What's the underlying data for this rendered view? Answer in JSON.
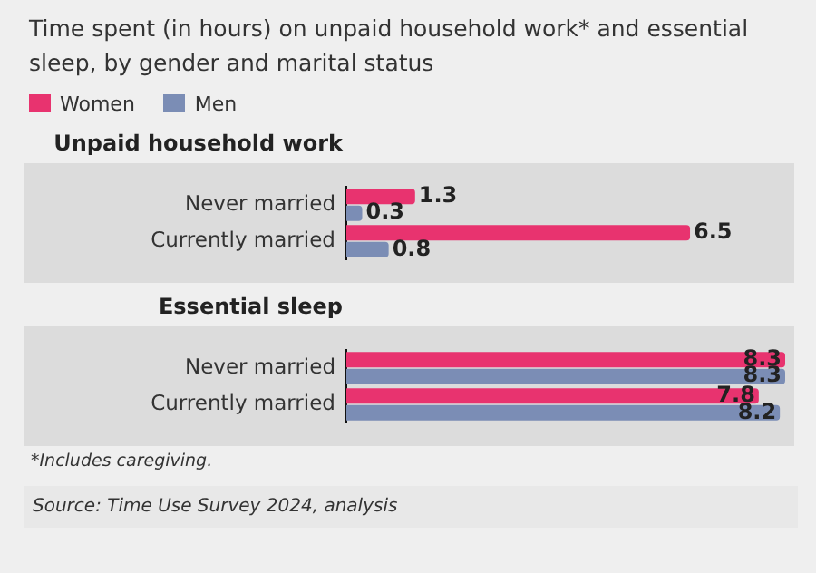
{
  "chart_data": [
    {
      "type": "bar",
      "orientation": "horizontal",
      "title": "Time spent (in hours) on unpaid household work* and essential sleep, by gender and marital status",
      "subtitle": "Unpaid household work",
      "categories": [
        "Never married",
        "Currently married"
      ],
      "series": [
        {
          "name": "Women",
          "color": "#e8336f",
          "values": [
            1.3,
            6.5
          ]
        },
        {
          "name": "Men",
          "color": "#7b8db5",
          "values": [
            0.3,
            0.8
          ]
        }
      ],
      "data_labels": true,
      "legend": "top left"
    },
    {
      "type": "bar",
      "orientation": "horizontal",
      "title": "Essential sleep",
      "categories": [
        "Never married",
        "Currently married"
      ],
      "series": [
        {
          "color": "#e8336f",
          "values": [
            8.3,
            7.8
          ]
        },
        {
          "color": "#7b8db5",
          "values": [
            8.3,
            8.2
          ]
        }
      ],
      "data_labels": true,
      "annotations": [
        "*Includes caregiving.",
        "Source: Time Use Survey 2024, analysis"
      ]
    }
  ]
}
